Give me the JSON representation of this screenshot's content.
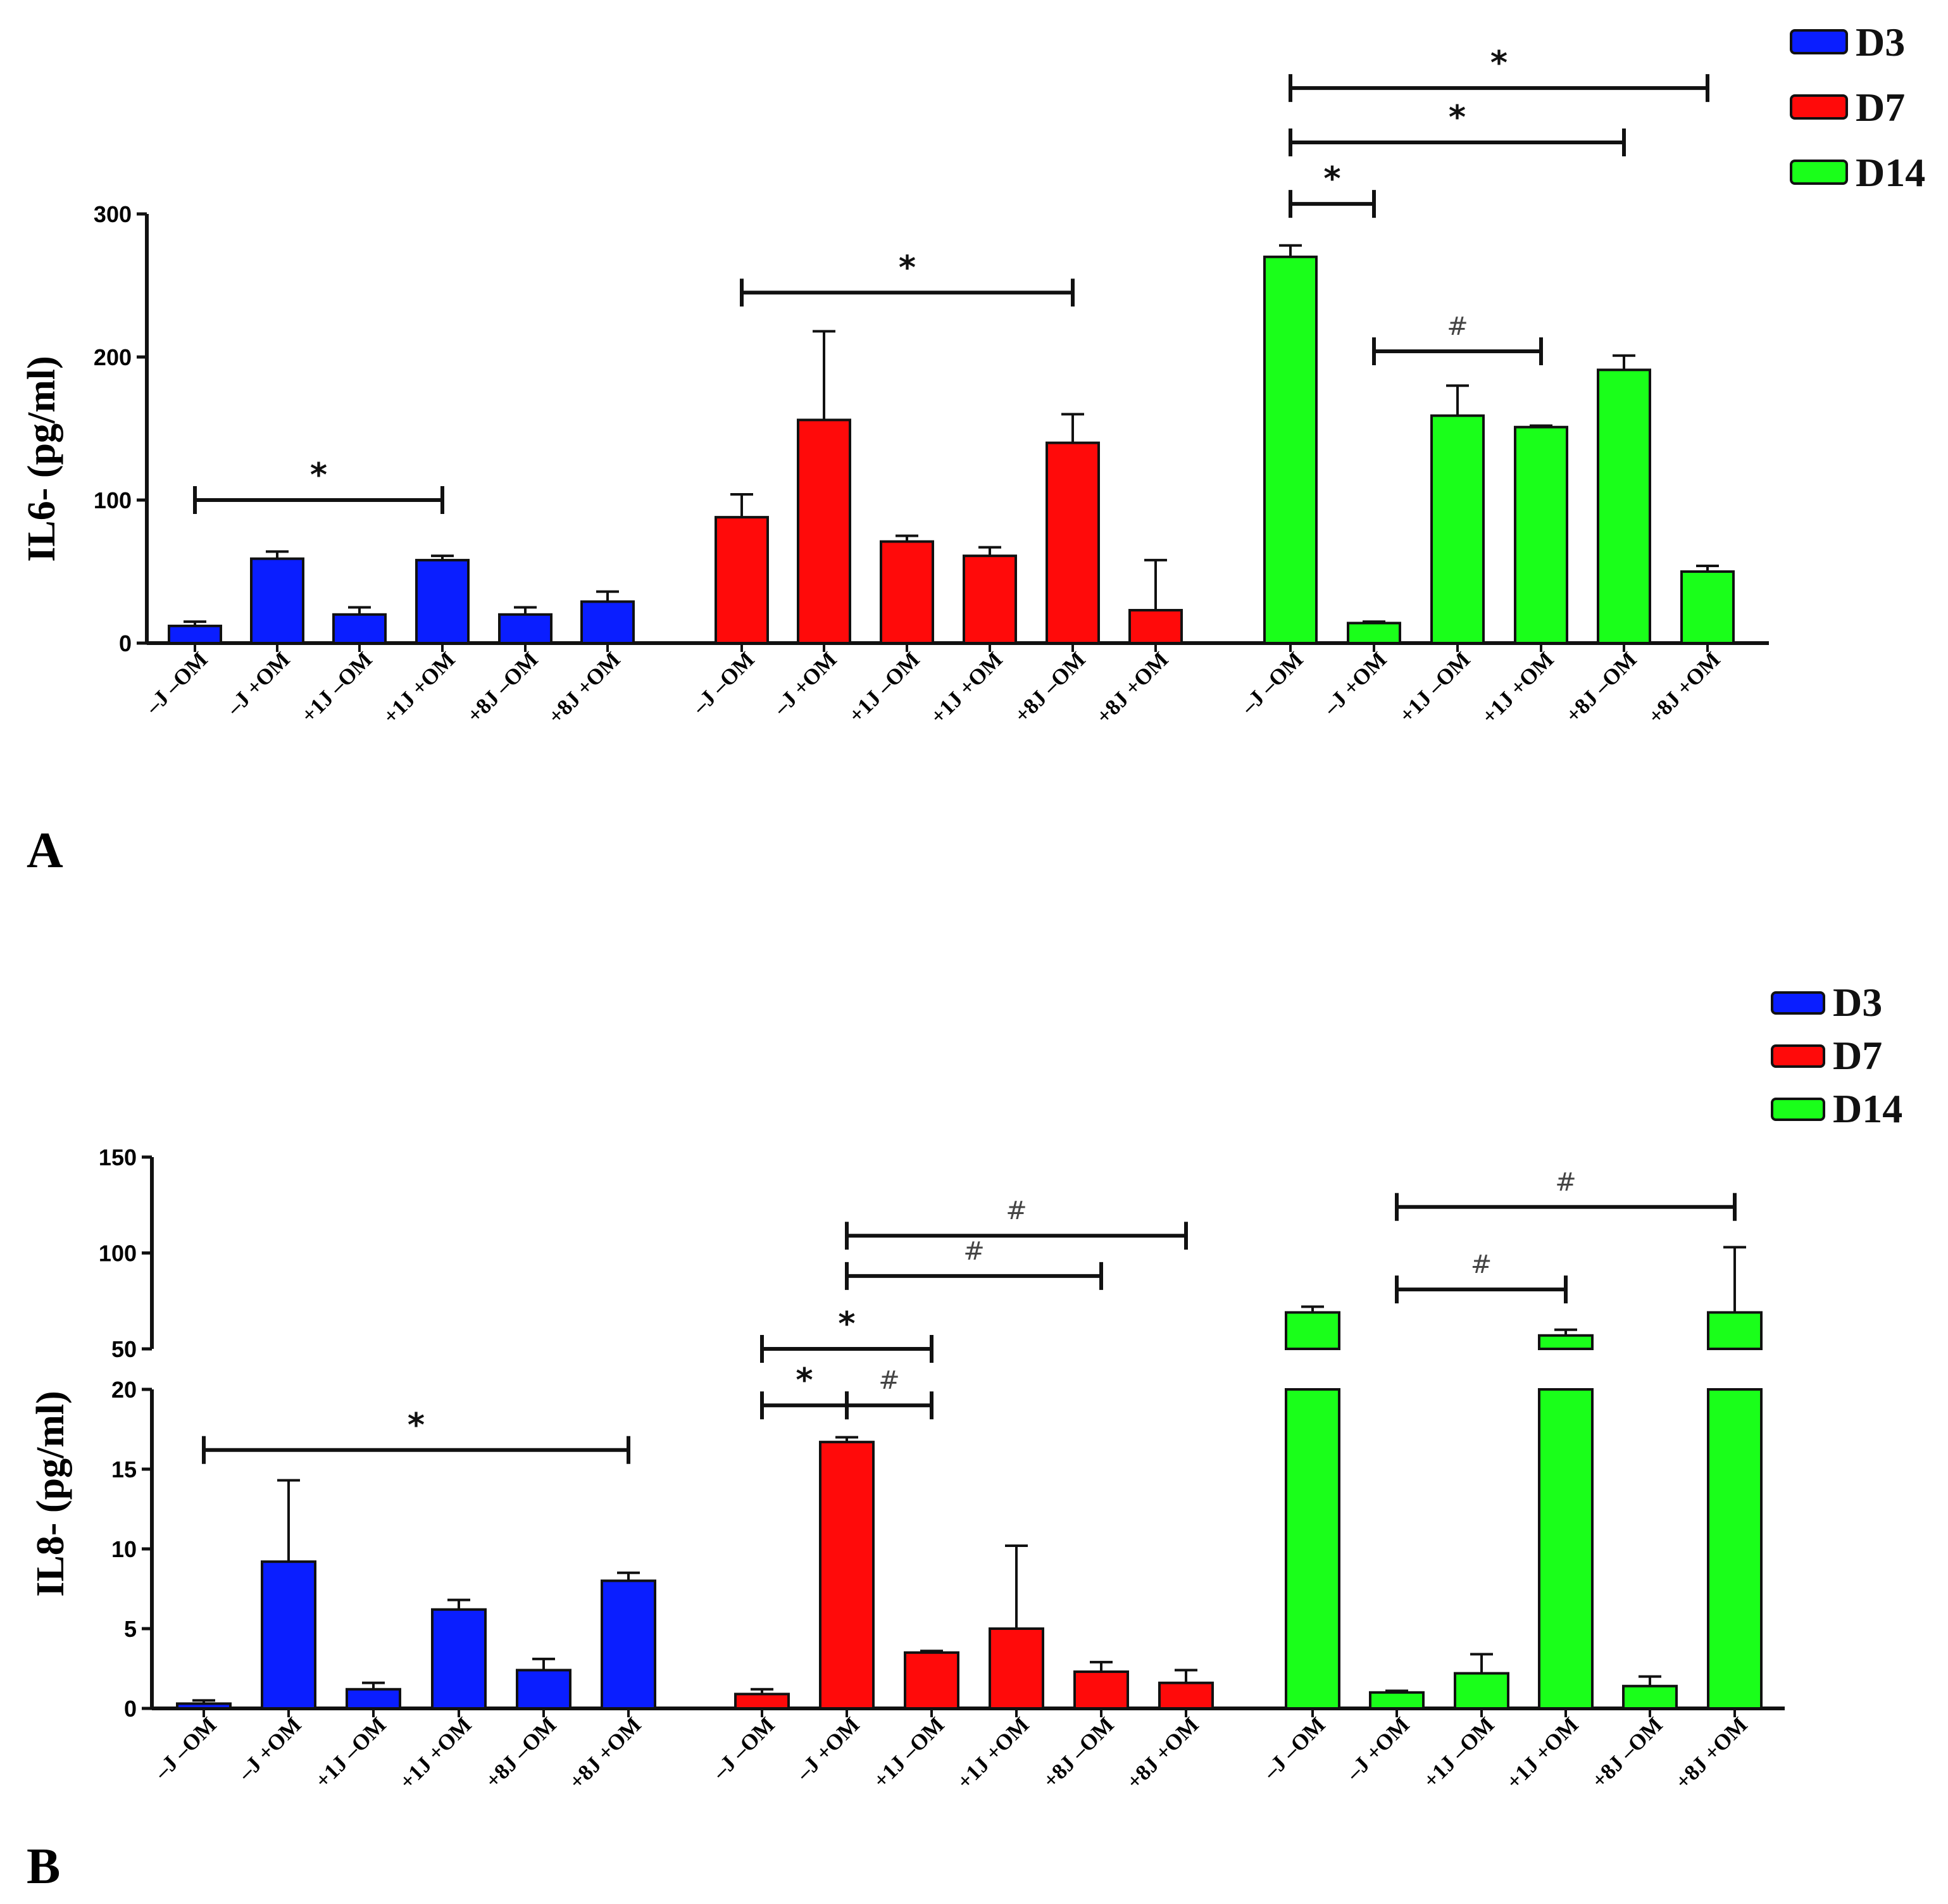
{
  "chart_data": [
    {
      "type": "bar",
      "panel": "A",
      "ylabel": "IL6- (pg/ml)",
      "ylim": [
        0,
        300
      ],
      "yticks": [
        "0",
        "100",
        "200",
        "300"
      ],
      "legend": {
        "placement": "top-right",
        "entries": [
          {
            "name": "D3",
            "color": "#0a1eff"
          },
          {
            "name": "D7",
            "color": "#ff0a0a"
          },
          {
            "name": "D14",
            "color": "#1aff1a"
          }
        ]
      },
      "categories": [
        "–J –OM",
        "–J +OM",
        "+1J –OM",
        "+1J +OM",
        "+8J –OM",
        "+8J +OM"
      ],
      "series": [
        {
          "name": "D3",
          "color": "#0a1eff",
          "values": [
            12,
            59,
            20,
            58,
            20,
            29
          ],
          "errors": [
            3,
            5,
            5,
            3,
            5,
            7
          ]
        },
        {
          "name": "D7",
          "color": "#ff0a0a",
          "values": [
            88,
            156,
            71,
            61,
            140,
            23
          ],
          "errors": [
            16,
            62,
            4,
            6,
            20,
            35
          ]
        },
        {
          "name": "D14",
          "color": "#1aff1a",
          "values": [
            270,
            14,
            159,
            151,
            191,
            50
          ],
          "errors": [
            8,
            1,
            21,
            1,
            10,
            4
          ]
        }
      ],
      "annotations": [
        {
          "label": "*",
          "group": 0,
          "from": 0,
          "to": 3,
          "y": 100
        },
        {
          "label": "*",
          "group": 1,
          "from": 0,
          "to": 4,
          "y": 245
        },
        {
          "label": "*",
          "group": 2,
          "from": 0,
          "to": 1,
          "y": 307
        },
        {
          "label": "*",
          "group": 2,
          "from": 0,
          "to": 4,
          "y": 350
        },
        {
          "label": "*",
          "group": 2,
          "from": 0,
          "to": 5,
          "y": 388
        },
        {
          "label": "#",
          "group": 2,
          "from": 1,
          "to": 3,
          "y": 204
        }
      ]
    },
    {
      "type": "bar",
      "panel": "B",
      "ylabel": "IL8- (pg/ml)",
      "axis_break": {
        "lower": [
          0,
          20
        ],
        "upper": [
          50,
          150
        ]
      },
      "yticks_lower": [
        "0",
        "5",
        "10",
        "15",
        "20"
      ],
      "yticks_upper": [
        "50",
        "100",
        "150"
      ],
      "legend": {
        "placement": "top-right",
        "entries": [
          {
            "name": "D3",
            "color": "#0a1eff"
          },
          {
            "name": "D7",
            "color": "#ff0a0a"
          },
          {
            "name": "D14",
            "color": "#1aff1a"
          }
        ]
      },
      "categories": [
        "–J –OM",
        "–J +OM",
        "+1J –OM",
        "+1J +OM",
        "+8J –OM",
        "+8J +OM"
      ],
      "series": [
        {
          "name": "D3",
          "color": "#0a1eff",
          "values": [
            0.3,
            9.2,
            1.2,
            6.2,
            2.4,
            8.0
          ],
          "errors": [
            0.2,
            5.1,
            0.4,
            0.6,
            0.7,
            0.5
          ]
        },
        {
          "name": "D7",
          "color": "#ff0a0a",
          "values": [
            0.9,
            16.7,
            3.5,
            5.0,
            2.3,
            1.6
          ],
          "errors": [
            0.3,
            0.3,
            0.1,
            5.2,
            0.6,
            0.8
          ]
        },
        {
          "name": "D14",
          "color": "#1aff1a",
          "values": [
            69,
            1.0,
            2.2,
            57,
            1.4,
            69
          ],
          "errors": [
            3,
            0.1,
            1.2,
            3,
            0.6,
            34
          ]
        }
      ],
      "annotations": [
        {
          "label": "*",
          "group": 0,
          "from": 0,
          "to": 5,
          "y": 16.2
        },
        {
          "label": "*",
          "group": 1,
          "from": 0,
          "to": 1,
          "y": 19
        },
        {
          "label": "#",
          "group": 1,
          "from": 1,
          "to": 2,
          "y": 19
        },
        {
          "label": "*",
          "group": 1,
          "from": 0,
          "to": 2,
          "y": 50
        },
        {
          "label": "#",
          "group": 1,
          "from": 1,
          "to": 4,
          "y": 88
        },
        {
          "label": "#",
          "group": 1,
          "from": 1,
          "to": 5,
          "y": 109
        },
        {
          "label": "#",
          "group": 2,
          "from": 1,
          "to": 3,
          "y": 81
        },
        {
          "label": "#",
          "group": 2,
          "from": 1,
          "to": 5,
          "y": 124
        }
      ]
    }
  ]
}
